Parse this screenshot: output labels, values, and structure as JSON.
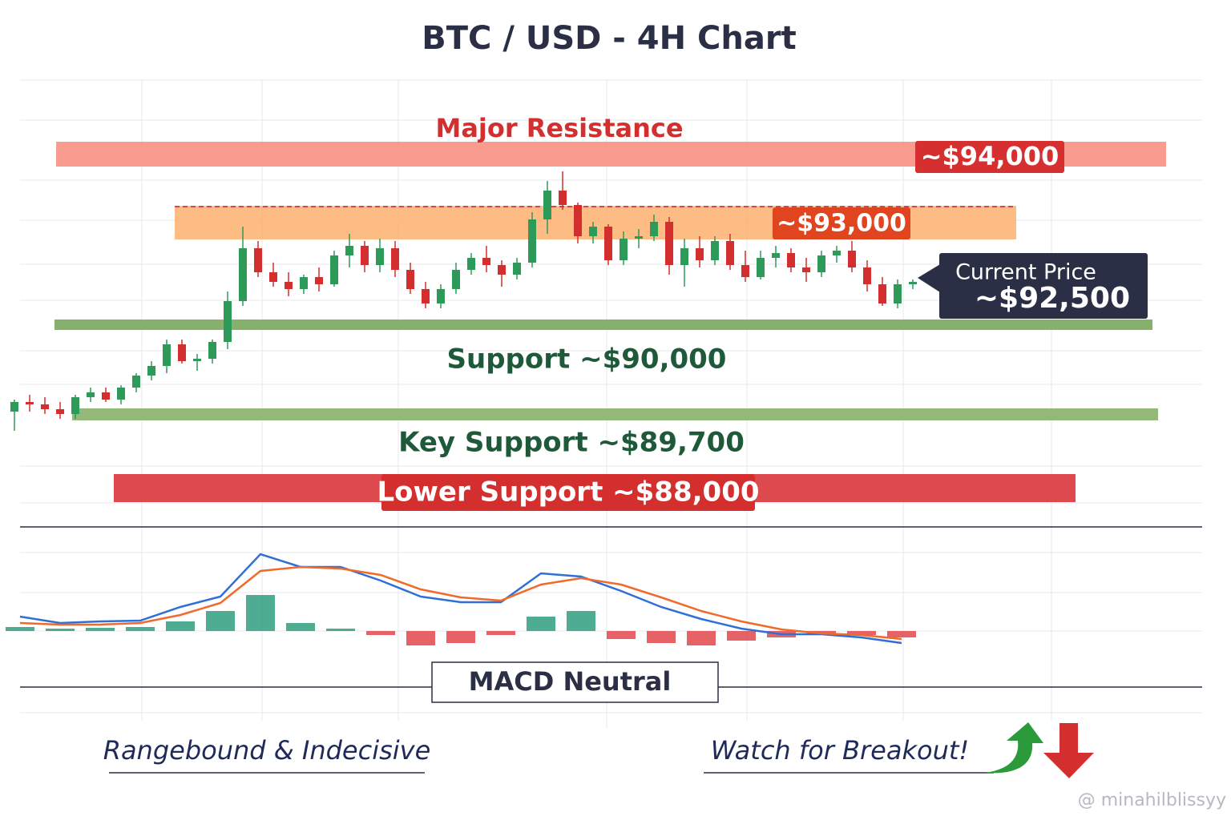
{
  "chart_data": [
    {
      "type": "candlestick",
      "title": "BTC / USD - 4H Chart",
      "ylim": [
        87000,
        95000
      ],
      "up_color": "#2e9a5a",
      "down_color": "#d32f2f",
      "open": [
        89100,
        89300,
        89250,
        89150,
        89050,
        89400,
        89500,
        89350,
        89600,
        89850,
        90050,
        90500,
        90150,
        90200,
        90550,
        91400,
        92500,
        92000,
        91800,
        91650,
        91900,
        91750,
        92350,
        92550,
        92150,
        92500,
        92050,
        91650,
        91350,
        91650,
        92050,
        92300,
        92150,
        91950,
        92200,
        93100,
        93700,
        93400,
        92750,
        92950,
        92250,
        92700,
        92750,
        93050,
        92150,
        92500,
        92250,
        92650,
        92150,
        91900,
        92300,
        92400,
        92100,
        92000,
        92350,
        92450,
        92100,
        91750,
        91350,
        91750
      ],
      "high": [
        89350,
        89450,
        89400,
        89300,
        89450,
        89600,
        89600,
        89650,
        89900,
        90150,
        90600,
        90600,
        90300,
        90600,
        91600,
        92950,
        92650,
        92200,
        92000,
        91950,
        92100,
        92450,
        92800,
        92650,
        92700,
        92650,
        92200,
        91800,
        91750,
        92200,
        92400,
        92550,
        92250,
        92300,
        93250,
        93900,
        94100,
        93450,
        93050,
        93000,
        92850,
        92900,
        93200,
        93150,
        92700,
        92750,
        92750,
        92800,
        92450,
        92450,
        92550,
        92500,
        92300,
        92450,
        92550,
        92650,
        92250,
        91900,
        91850,
        91850
      ],
      "low": [
        88700,
        89100,
        89050,
        88950,
        88950,
        89300,
        89300,
        89250,
        89500,
        89750,
        89900,
        90100,
        89950,
        90100,
        90400,
        91300,
        91900,
        91700,
        91500,
        91550,
        91600,
        91700,
        92100,
        92000,
        92000,
        91900,
        91550,
        91250,
        91250,
        91550,
        91950,
        92000,
        91700,
        91850,
        92100,
        92800,
        93300,
        92600,
        92600,
        92150,
        92150,
        92500,
        92650,
        91950,
        91700,
        92100,
        92150,
        92050,
        91800,
        91850,
        92100,
        92000,
        91800,
        91900,
        92200,
        92000,
        91600,
        91300,
        91250,
        91650
      ],
      "close": [
        89300,
        89250,
        89150,
        89050,
        89400,
        89500,
        89350,
        89600,
        89850,
        90050,
        90500,
        90150,
        90200,
        90550,
        91400,
        92500,
        92000,
        91800,
        91650,
        91900,
        91750,
        92350,
        92550,
        92150,
        92500,
        92050,
        91650,
        91350,
        91650,
        92050,
        92300,
        92150,
        91950,
        92200,
        93100,
        93700,
        93400,
        92750,
        92950,
        92250,
        92700,
        92750,
        93050,
        92150,
        92500,
        92250,
        92650,
        92150,
        91900,
        92300,
        92400,
        92100,
        92000,
        92350,
        92450,
        92100,
        91750,
        91350,
        91750,
        91800
      ],
      "resistance_label": "Major Resistance",
      "resistance_price": "~$94,000",
      "upper_zone_price": "~$93,000",
      "current_label": "Current Price",
      "current_price": "~$92,500",
      "support_label": "Support ~$90,000",
      "key_support_label": "Key Support ~$89,700",
      "lower_support_label": "Lower Support ~$88,000",
      "left_note": "Rangebound & Indecisive",
      "right_note": "Watch for Breakout!",
      "watermark": "@ minahilblissyy"
    },
    {
      "type": "line",
      "ylim": [
        -60,
        100
      ],
      "label": "MACD Neutral",
      "series": [
        {
          "color": "#2f6fd6",
          "values": [
            18,
            10,
            12,
            13,
            30,
            43,
            96,
            80,
            80,
            63,
            43,
            36,
            36,
            72,
            68,
            50,
            30,
            15,
            3,
            -4,
            -4,
            -8,
            -15
          ]
        },
        {
          "color": "#f06a2a",
          "values": [
            10,
            8,
            8,
            10,
            20,
            35,
            75,
            80,
            78,
            70,
            52,
            42,
            38,
            58,
            66,
            58,
            42,
            25,
            12,
            2,
            -3,
            -5,
            -10
          ]
        }
      ],
      "bars": {
        "up_color": "#2e9e7e",
        "down_color": "#e0474c",
        "values": [
          5,
          3,
          4,
          5,
          12,
          25,
          45,
          10,
          3,
          -5,
          -18,
          -15,
          -5,
          18,
          25,
          -10,
          -15,
          -18,
          -12,
          -8,
          -5,
          -5,
          -8
        ]
      }
    }
  ]
}
